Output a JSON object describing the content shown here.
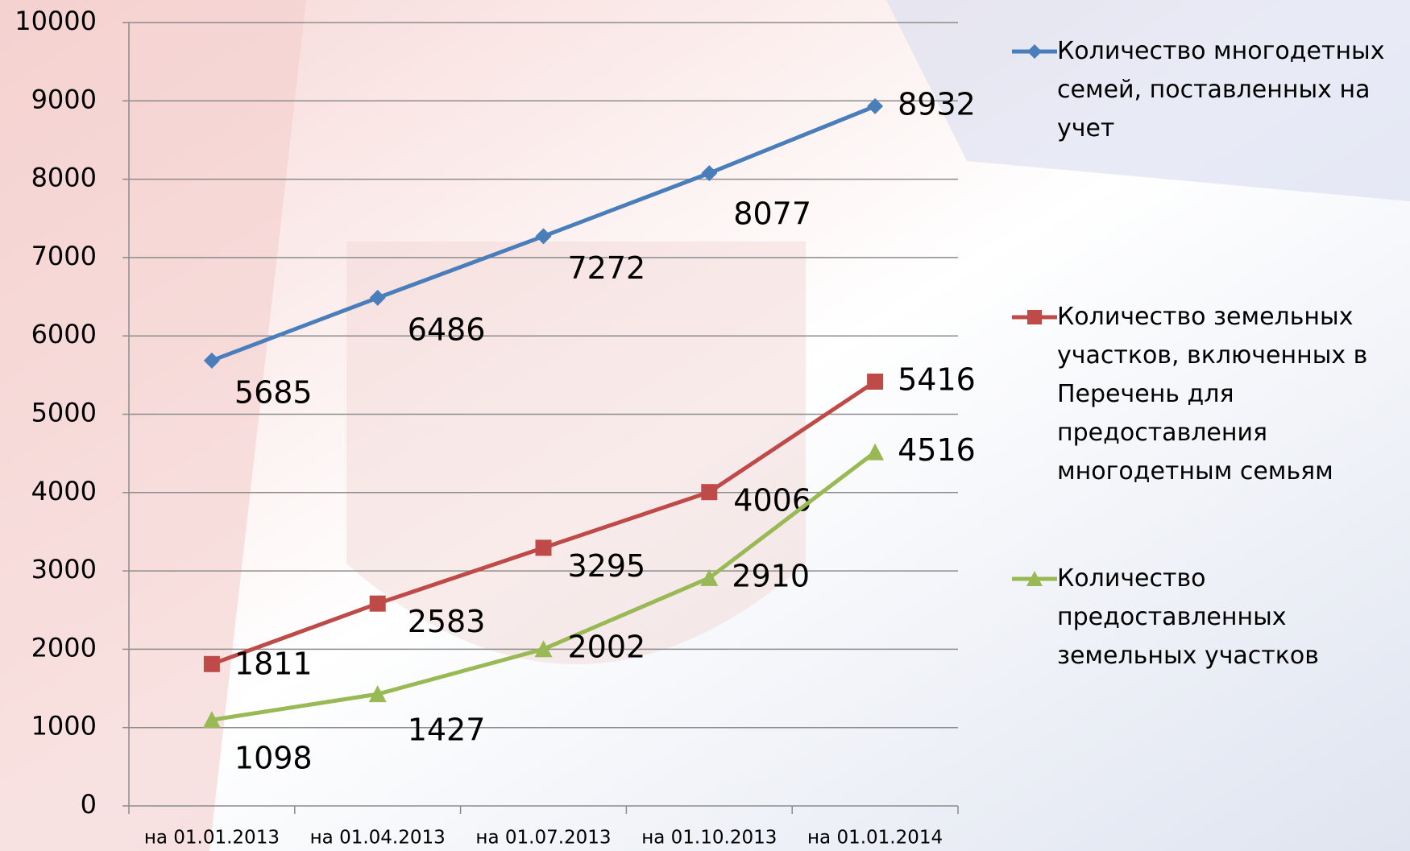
{
  "chart_data": {
    "type": "line",
    "categories": [
      "на 01.01.2013",
      "на 01.04.2013",
      "на 01.07.2013",
      "на 01.10.2013",
      "на 01.01.2014"
    ],
    "series": [
      {
        "name": "Количество многодетных семей, поставленных на учет",
        "color": "#4a7ebb",
        "marker": "diamond",
        "values": [
          5685,
          6486,
          7272,
          8077,
          8932
        ]
      },
      {
        "name": "Количество земельных участков, включенных в Перечень для предоставления многодетным семьям",
        "color": "#be4b48",
        "marker": "square",
        "values": [
          1811,
          2583,
          3295,
          4006,
          5416
        ]
      },
      {
        "name": "Количество предоставленных земельных участков",
        "color": "#98b954",
        "marker": "triangle",
        "values": [
          1098,
          1427,
          2002,
          2910,
          4516
        ]
      }
    ],
    "ylim": [
      0,
      10000
    ],
    "yticks": [
      0,
      1000,
      2000,
      3000,
      4000,
      5000,
      6000,
      7000,
      8000,
      9000,
      10000
    ],
    "grid": true,
    "legend": "right"
  }
}
